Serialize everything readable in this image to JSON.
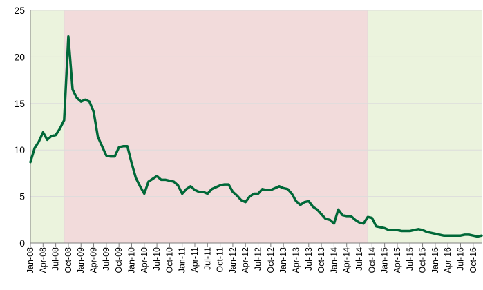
{
  "chart_data": {
    "type": "line",
    "title": "",
    "xlabel": "",
    "ylabel": "",
    "ylim": [
      0,
      25
    ],
    "yticks": [
      "0",
      "5",
      "10",
      "15",
      "20",
      "25"
    ],
    "grid": true,
    "legend": "none",
    "xtick_labels": [
      "Jan-08",
      "Apr-08",
      "Jul-08",
      "Oct-08",
      "Jan-09",
      "Apr-09",
      "Jul-09",
      "Oct-09",
      "Jan-10",
      "Apr-10",
      "Jul-10",
      "Oct-10",
      "Jan-11",
      "Apr-11",
      "Jul-11",
      "Oct-11",
      "Jan-12",
      "Apr-12",
      "Jul-12",
      "Oct-12",
      "Jan-13",
      "Apr-13",
      "Jul-13",
      "Oct-13",
      "Jan-14",
      "Apr-14",
      "Jul-14",
      "Oct-14",
      "Jan-15",
      "Apr-15",
      "Jul-15",
      "Oct-15",
      "Jan-16",
      "Apr-16",
      "Jul-16",
      "Oct-16"
    ],
    "x_start": "2008-01",
    "x_end": "2016-12",
    "shaded_regions": [
      {
        "from": "2008-01",
        "to": "2008-09",
        "color": "#ebf3dd"
      },
      {
        "from": "2008-09",
        "to": "2014-09",
        "color": "#f2dbdb"
      },
      {
        "from": "2014-09",
        "to": "2016-12",
        "color": "#ebf3dd"
      }
    ],
    "series": [
      {
        "color": "#006838",
        "x": [
          "2008-01",
          "2008-02",
          "2008-03",
          "2008-04",
          "2008-05",
          "2008-06",
          "2008-07",
          "2008-08",
          "2008-09",
          "2008-10",
          "2008-11",
          "2008-12",
          "2009-01",
          "2009-02",
          "2009-03",
          "2009-04",
          "2009-05",
          "2009-06",
          "2009-07",
          "2009-08",
          "2009-09",
          "2009-10",
          "2009-11",
          "2009-12",
          "2010-01",
          "2010-02",
          "2010-03",
          "2010-04",
          "2010-05",
          "2010-06",
          "2010-07",
          "2010-08",
          "2010-09",
          "2010-10",
          "2010-11",
          "2010-12",
          "2011-01",
          "2011-02",
          "2011-03",
          "2011-04",
          "2011-05",
          "2011-06",
          "2011-07",
          "2011-08",
          "2011-09",
          "2011-10",
          "2011-11",
          "2011-12",
          "2012-01",
          "2012-02",
          "2012-03",
          "2012-04",
          "2012-05",
          "2012-06",
          "2012-07",
          "2012-08",
          "2012-09",
          "2012-10",
          "2012-11",
          "2012-12",
          "2013-01",
          "2013-02",
          "2013-03",
          "2013-04",
          "2013-05",
          "2013-06",
          "2013-07",
          "2013-08",
          "2013-09",
          "2013-10",
          "2013-11",
          "2013-12",
          "2014-01",
          "2014-02",
          "2014-03",
          "2014-04",
          "2014-05",
          "2014-06",
          "2014-07",
          "2014-08",
          "2014-09",
          "2014-10",
          "2014-11",
          "2014-12",
          "2015-01",
          "2015-02",
          "2015-03",
          "2015-04",
          "2015-05",
          "2015-06",
          "2015-07",
          "2015-08",
          "2015-09",
          "2015-10",
          "2015-11",
          "2015-12",
          "2016-01",
          "2016-02",
          "2016-03",
          "2016-04",
          "2016-05",
          "2016-06",
          "2016-07",
          "2016-08",
          "2016-09",
          "2016-10",
          "2016-11",
          "2016-12"
        ],
        "values": [
          8.7,
          10.2,
          10.9,
          11.9,
          11.1,
          11.5,
          11.6,
          12.3,
          13.2,
          22.2,
          16.5,
          15.6,
          15.2,
          15.4,
          15.2,
          14.1,
          11.4,
          10.4,
          9.4,
          9.3,
          9.3,
          10.3,
          10.4,
          10.4,
          8.6,
          7.0,
          6.1,
          5.3,
          6.6,
          6.9,
          7.2,
          6.8,
          6.8,
          6.7,
          6.6,
          6.2,
          5.3,
          5.8,
          6.1,
          5.7,
          5.5,
          5.5,
          5.3,
          5.8,
          6.0,
          6.2,
          6.3,
          6.3,
          5.5,
          5.1,
          4.6,
          4.4,
          5.0,
          5.3,
          5.3,
          5.8,
          5.7,
          5.7,
          5.9,
          6.1,
          5.9,
          5.8,
          5.3,
          4.5,
          4.1,
          4.4,
          4.5,
          3.9,
          3.6,
          3.1,
          2.6,
          2.5,
          2.1,
          3.6,
          3.0,
          2.9,
          2.9,
          2.5,
          2.2,
          2.1,
          2.8,
          2.7,
          1.8,
          1.7,
          1.6,
          1.4,
          1.4,
          1.4,
          1.3,
          1.3,
          1.3,
          1.4,
          1.5,
          1.4,
          1.2,
          1.1,
          1.0,
          0.9,
          0.8,
          0.8,
          0.8,
          0.8,
          0.8,
          0.9,
          0.9,
          0.8,
          0.7,
          0.8
        ]
      }
    ]
  }
}
